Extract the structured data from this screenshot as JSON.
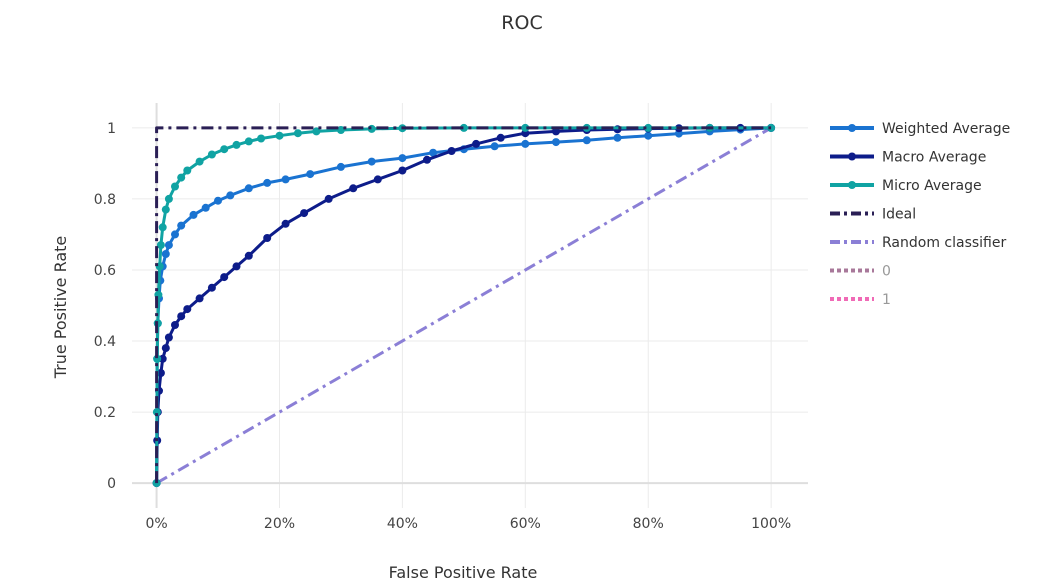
{
  "chart_data": {
    "type": "line",
    "title": "ROC",
    "xlabel": "False Positive Rate",
    "ylabel": "True Positive Rate",
    "xlim": [
      -0.04,
      1.06
    ],
    "ylim": [
      -0.07,
      1.07
    ],
    "x_ticks": [
      0,
      0.2,
      0.4,
      0.6,
      0.8,
      1.0
    ],
    "x_tick_labels": [
      "0%",
      "20%",
      "40%",
      "60%",
      "80%",
      "100%"
    ],
    "y_ticks": [
      0,
      0.2,
      0.4,
      0.6,
      0.8,
      1.0
    ],
    "y_tick_labels": [
      "0",
      "0.2",
      "0.4",
      "0.6",
      "0.8",
      "1"
    ],
    "grid": true,
    "legend_position": "right",
    "series": [
      {
        "name": "Weighted Average",
        "color": "#1a73d1",
        "style": "solid-markers",
        "x": [
          0,
          0.001,
          0.002,
          0.004,
          0.006,
          0.01,
          0.015,
          0.02,
          0.03,
          0.04,
          0.06,
          0.08,
          0.1,
          0.12,
          0.15,
          0.18,
          0.21,
          0.25,
          0.3,
          0.35,
          0.4,
          0.45,
          0.5,
          0.55,
          0.6,
          0.65,
          0.7,
          0.75,
          0.8,
          0.85,
          0.9,
          0.95,
          1.0
        ],
        "y": [
          0,
          0.35,
          0.45,
          0.52,
          0.57,
          0.61,
          0.645,
          0.67,
          0.7,
          0.725,
          0.755,
          0.775,
          0.795,
          0.81,
          0.83,
          0.845,
          0.855,
          0.87,
          0.89,
          0.905,
          0.915,
          0.93,
          0.94,
          0.948,
          0.955,
          0.96,
          0.965,
          0.972,
          0.978,
          0.984,
          0.99,
          0.995,
          1.0
        ]
      },
      {
        "name": "Macro Average",
        "color": "#0d1c8a",
        "style": "solid-markers",
        "x": [
          0,
          0.001,
          0.002,
          0.004,
          0.007,
          0.01,
          0.015,
          0.02,
          0.03,
          0.04,
          0.05,
          0.07,
          0.09,
          0.11,
          0.13,
          0.15,
          0.18,
          0.21,
          0.24,
          0.28,
          0.32,
          0.36,
          0.4,
          0.44,
          0.48,
          0.52,
          0.56,
          0.6,
          0.65,
          0.7,
          0.75,
          0.8,
          0.85,
          0.9,
          0.95,
          1.0
        ],
        "y": [
          0,
          0.12,
          0.2,
          0.26,
          0.31,
          0.35,
          0.38,
          0.41,
          0.445,
          0.47,
          0.49,
          0.52,
          0.55,
          0.58,
          0.61,
          0.64,
          0.69,
          0.73,
          0.76,
          0.8,
          0.83,
          0.855,
          0.88,
          0.91,
          0.935,
          0.955,
          0.972,
          0.985,
          0.99,
          0.994,
          0.996,
          0.998,
          0.999,
          1.0,
          1.0,
          1.0
        ]
      },
      {
        "name": "Micro Average",
        "color": "#10a3a3",
        "style": "solid-markers",
        "x": [
          0,
          0.0005,
          0.001,
          0.002,
          0.003,
          0.005,
          0.007,
          0.01,
          0.015,
          0.02,
          0.03,
          0.04,
          0.05,
          0.07,
          0.09,
          0.11,
          0.13,
          0.15,
          0.17,
          0.2,
          0.23,
          0.26,
          0.3,
          0.35,
          0.4,
          0.5,
          0.6,
          0.7,
          0.8,
          0.9,
          1.0
        ],
        "y": [
          0,
          0.2,
          0.35,
          0.45,
          0.53,
          0.61,
          0.67,
          0.72,
          0.77,
          0.8,
          0.835,
          0.86,
          0.88,
          0.905,
          0.925,
          0.94,
          0.952,
          0.962,
          0.97,
          0.978,
          0.985,
          0.99,
          0.994,
          0.997,
          0.999,
          1.0,
          1.0,
          1.0,
          1.0,
          1.0,
          1.0
        ]
      },
      {
        "name": "Ideal",
        "color": "#2a1f55",
        "style": "dashdot",
        "x": [
          0,
          0,
          1
        ],
        "y": [
          0,
          1,
          1
        ]
      },
      {
        "name": "Random classifier",
        "color": "#8b7fd6",
        "style": "dashdot",
        "x": [
          0,
          1
        ],
        "y": [
          0,
          1
        ]
      },
      {
        "name": "0",
        "color": "#a8789a",
        "style": "dot",
        "hidden": true,
        "x": [],
        "y": []
      },
      {
        "name": "1",
        "color": "#f06ab6",
        "style": "dot",
        "hidden": true,
        "x": [],
        "y": []
      }
    ]
  }
}
